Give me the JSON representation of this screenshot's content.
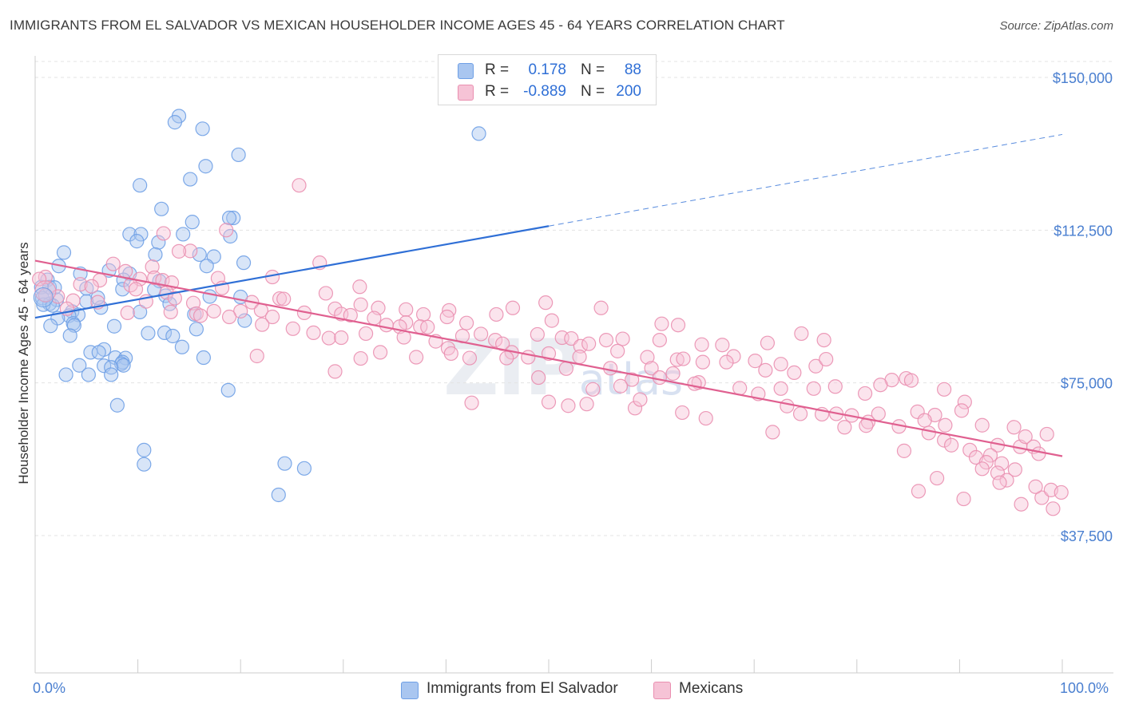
{
  "title": "IMMIGRANTS FROM EL SALVADOR VS MEXICAN HOUSEHOLDER INCOME AGES 45 - 64 YEARS CORRELATION CHART",
  "source": "Source: ZipAtlas.com",
  "watermark": {
    "main": "ZIP",
    "sub": "atlas"
  },
  "legend": {
    "rows": [
      {
        "r_label": "R =",
        "r_value": "0.178",
        "n_label": "N =",
        "n_value": "88"
      },
      {
        "r_label": "R =",
        "r_value": "-0.889",
        "n_label": "N =",
        "n_value": "200"
      }
    ]
  },
  "bottom_legend": [
    "Immigrants from El Salvador",
    "Mexicans"
  ],
  "chart_data": {
    "type": "scatter",
    "title": "IMMIGRANTS FROM EL SALVADOR VS MEXICAN HOUSEHOLDER INCOME AGES 45 - 64 YEARS CORRELATION CHART",
    "xlabel": "",
    "ylabel": "Householder Income Ages 45 - 64 years",
    "xlim": [
      0,
      100
    ],
    "ylim": [
      0,
      152000
    ],
    "x_tick_labels": [
      "0.0%",
      "100.0%"
    ],
    "y_ticks": [
      {
        "value": 150000,
        "label": "$150,000"
      },
      {
        "value": 112500,
        "label": "$112,500"
      },
      {
        "value": 75000,
        "label": "$75,000"
      },
      {
        "value": 37500,
        "label": "$37,500"
      }
    ],
    "grid": true,
    "series": [
      {
        "name": "Immigrants from El Salvador",
        "color": "#6fa0e6",
        "fill": "#a9c6f0",
        "trend": {
          "x0": 0,
          "y0": 91000,
          "x1": 50,
          "y1": 113500,
          "dash_to_x": 100,
          "dash_to_y": 136000,
          "color": "#2f6fd6"
        },
        "points": [
          [
            14,
            140.5
          ],
          [
            13.6,
            139
          ],
          [
            16.3,
            137.4
          ],
          [
            43.2,
            136.2
          ],
          [
            19.8,
            131
          ],
          [
            16.6,
            128.2
          ],
          [
            15.1,
            125
          ],
          [
            10.2,
            123.5
          ],
          [
            12.3,
            117.7
          ],
          [
            19.3,
            115.5
          ],
          [
            18.9,
            115.5
          ],
          [
            15.3,
            114.5
          ],
          [
            9.2,
            111.5
          ],
          [
            10.3,
            111.5
          ],
          [
            14.4,
            111.5
          ],
          [
            19.0,
            111
          ],
          [
            9.9,
            109.8
          ],
          [
            12.0,
            109.5
          ],
          [
            2.8,
            107
          ],
          [
            11.7,
            106.5
          ],
          [
            16.0,
            106.5
          ],
          [
            17.4,
            106
          ],
          [
            20.3,
            104.5
          ],
          [
            16.7,
            103.7
          ],
          [
            2.3,
            103.7
          ],
          [
            7.2,
            102.6
          ],
          [
            4.4,
            101.8
          ],
          [
            9.2,
            101.8
          ],
          [
            1.2,
            100.3
          ],
          [
            8.6,
            100.3
          ],
          [
            12.1,
            100
          ],
          [
            1.4,
            98.5
          ],
          [
            0.6,
            98.5
          ],
          [
            1.9,
            98.4
          ],
          [
            8.5,
            98
          ],
          [
            12.7,
            96.4
          ],
          [
            17.0,
            96.2
          ],
          [
            0.7,
            95.8
          ],
          [
            2.1,
            95.4
          ],
          [
            5.0,
            95.0
          ],
          [
            1.4,
            94.4
          ],
          [
            13.1,
            94.4
          ],
          [
            0.8,
            94.2
          ],
          [
            1.7,
            94
          ],
          [
            6.4,
            93.5
          ],
          [
            3.6,
            92.5
          ],
          [
            10.2,
            92.4
          ],
          [
            15.5,
            91.8
          ],
          [
            4.2,
            91.7
          ],
          [
            3.3,
            91.5
          ],
          [
            2.2,
            90.9
          ],
          [
            20.4,
            90.3
          ],
          [
            3.7,
            89.6
          ],
          [
            3.8,
            89.1
          ],
          [
            1.5,
            89.0
          ],
          [
            7.7,
            88.9
          ],
          [
            15.7,
            88.2
          ],
          [
            11.0,
            87.2
          ],
          [
            12.6,
            87.3
          ],
          [
            3.4,
            86.6
          ],
          [
            13.4,
            86.5
          ],
          [
            14.3,
            83.8
          ],
          [
            6.7,
            83.2
          ],
          [
            5.4,
            82.5
          ],
          [
            6.2,
            82.5
          ],
          [
            7.8,
            81.2
          ],
          [
            16.4,
            81.2
          ],
          [
            8.8,
            81.1
          ],
          [
            8.5,
            80.1
          ],
          [
            6.7,
            79.2
          ],
          [
            8.4,
            79.7
          ],
          [
            4.3,
            79.3
          ],
          [
            8.6,
            79.3
          ],
          [
            7.4,
            78.8
          ],
          [
            3.0,
            77
          ],
          [
            5.2,
            77
          ],
          [
            7.4,
            77
          ],
          [
            18.8,
            73.2
          ],
          [
            8.0,
            69.5
          ],
          [
            10.6,
            58.5
          ],
          [
            10.6,
            55
          ],
          [
            24.3,
            55.2
          ],
          [
            26.2,
            54
          ],
          [
            23.7,
            47.5
          ],
          [
            5.0,
            98.2
          ],
          [
            11.6,
            97.9
          ],
          [
            20.0,
            96.1
          ],
          [
            6.1,
            95.9
          ]
        ]
      },
      {
        "name": "Mexicans",
        "color": "#ea8fb0",
        "fill": "#f6c3d6",
        "trend": {
          "x0": 0,
          "y0": 105000,
          "x1": 100,
          "y1": 57000,
          "color": "#e06090"
        },
        "points": [
          [
            25.7,
            123.5
          ],
          [
            18.6,
            112.5
          ],
          [
            12.5,
            111.7
          ],
          [
            15.1,
            107.4
          ],
          [
            14.0,
            107.3
          ],
          [
            27.7,
            104.5
          ],
          [
            7.6,
            104.2
          ],
          [
            11.4,
            103.5
          ],
          [
            8.8,
            102.4
          ],
          [
            1.0,
            101.0
          ],
          [
            11.6,
            100.8
          ],
          [
            10.2,
            100.5
          ],
          [
            12.4,
            100.2
          ],
          [
            17.8,
            100.7
          ],
          [
            23.1,
            101.0
          ],
          [
            0.4,
            100.5
          ],
          [
            6.3,
            100.2
          ],
          [
            13.3,
            99.6
          ],
          [
            4.4,
            99.2
          ],
          [
            9.3,
            99
          ],
          [
            5.5,
            98.7
          ],
          [
            18.2,
            98.3
          ],
          [
            31.6,
            98.6
          ],
          [
            9.8,
            98
          ],
          [
            12.8,
            97.2
          ],
          [
            28.3,
            97
          ],
          [
            2.2,
            96.2
          ],
          [
            1.0,
            96.5
          ],
          [
            13.6,
            95.8
          ],
          [
            23.8,
            95.7
          ],
          [
            3.7,
            95.2
          ],
          [
            10.8,
            95
          ],
          [
            6.1,
            94.8
          ],
          [
            21.1,
            94.8
          ],
          [
            24.2,
            95.6
          ],
          [
            15.4,
            94.6
          ],
          [
            31.7,
            94.2
          ],
          [
            29.2,
            93.2
          ],
          [
            3.1,
            93.2
          ],
          [
            36.1,
            93
          ],
          [
            13.2,
            92.4
          ],
          [
            9.0,
            92.2
          ],
          [
            15.7,
            92
          ],
          [
            17.4,
            92.6
          ],
          [
            20.0,
            92.6
          ],
          [
            22.0,
            92.8
          ],
          [
            26.2,
            92.2
          ],
          [
            33.4,
            93.4
          ],
          [
            40.3,
            92.8
          ],
          [
            44.9,
            91.8
          ],
          [
            46.5,
            93.4
          ],
          [
            49.7,
            94.7
          ],
          [
            55.1,
            93.4
          ],
          [
            29.8,
            91.9
          ],
          [
            16.1,
            91.5
          ],
          [
            18.9,
            91.2
          ],
          [
            23.1,
            91.2
          ],
          [
            30.7,
            91.6
          ],
          [
            37.8,
            91.8
          ],
          [
            40.1,
            91.2
          ],
          [
            33.0,
            90.9
          ],
          [
            36.1,
            89.8
          ],
          [
            42.0,
            89.7
          ],
          [
            50.3,
            90.3
          ],
          [
            61.0,
            89.5
          ],
          [
            62.6,
            89.2
          ],
          [
            22.1,
            89.3
          ],
          [
            34.2,
            89.2
          ],
          [
            35.5,
            88.8
          ],
          [
            37.5,
            88.8
          ],
          [
            38.2,
            88.7
          ],
          [
            25.1,
            88.3
          ],
          [
            27.1,
            87.3
          ],
          [
            32.2,
            87.1
          ],
          [
            43.4,
            87
          ],
          [
            48.9,
            86.9
          ],
          [
            51.3,
            86.1
          ],
          [
            28.6,
            86.0
          ],
          [
            29.8,
            86.1
          ],
          [
            35.9,
            86.2
          ],
          [
            41.6,
            86.5
          ],
          [
            52.2,
            85.9
          ],
          [
            55.6,
            85.5
          ],
          [
            57.2,
            85.8
          ],
          [
            60.8,
            85.5
          ],
          [
            64.9,
            84.4
          ],
          [
            66.9,
            84.3
          ],
          [
            68.0,
            81.5
          ],
          [
            71.3,
            84.8
          ],
          [
            74.6,
            87.1
          ],
          [
            76.8,
            85.5
          ],
          [
            44.8,
            85.5
          ],
          [
            39.0,
            85.2
          ],
          [
            40.2,
            83.5
          ],
          [
            45.5,
            84.6
          ],
          [
            53.1,
            84
          ],
          [
            53.9,
            84.6
          ],
          [
            46.4,
            82.5
          ],
          [
            56.7,
            82.8
          ],
          [
            33.6,
            82.5
          ],
          [
            40.5,
            82.2
          ],
          [
            37.1,
            81.3
          ],
          [
            42.3,
            81.1
          ],
          [
            45.9,
            81.1
          ],
          [
            50.0,
            82.2
          ],
          [
            59.6,
            81.3
          ],
          [
            60.0,
            78.6
          ],
          [
            62.5,
            80.7
          ],
          [
            63.1,
            80.9
          ],
          [
            65.0,
            80.1
          ],
          [
            67.3,
            80.1
          ],
          [
            70.1,
            80.4
          ],
          [
            72.6,
            79.6
          ],
          [
            76.0,
            79.1
          ],
          [
            77.0,
            80.8
          ],
          [
            21.6,
            81.6
          ],
          [
            31.7,
            81.0
          ],
          [
            48.0,
            81.3
          ],
          [
            53.0,
            81.4
          ],
          [
            56.0,
            78.6
          ],
          [
            58.1,
            75.8
          ],
          [
            60.8,
            76.3
          ],
          [
            62.1,
            77.3
          ],
          [
            64.6,
            75.1
          ],
          [
            71.1,
            78.1
          ],
          [
            73.9,
            77.5
          ],
          [
            75.8,
            73.6
          ],
          [
            80.8,
            72.4
          ],
          [
            83.4,
            75.7
          ],
          [
            84.8,
            76.1
          ],
          [
            88.5,
            73.4
          ],
          [
            29.2,
            77.8
          ],
          [
            49.0,
            76.3
          ],
          [
            51.7,
            78.5
          ],
          [
            54.3,
            73.4
          ],
          [
            57.0,
            74.2
          ],
          [
            64.2,
            74.8
          ],
          [
            68.6,
            73.7
          ],
          [
            70.4,
            72.3
          ],
          [
            72.6,
            73.6
          ],
          [
            77.9,
            74.1
          ],
          [
            82.3,
            74.5
          ],
          [
            85.3,
            75.6
          ],
          [
            42.5,
            70.1
          ],
          [
            50.0,
            70.3
          ],
          [
            51.9,
            69.4
          ],
          [
            53.7,
            69.8
          ],
          [
            58.4,
            68.8
          ],
          [
            58.9,
            70.9
          ],
          [
            63.0,
            67.7
          ],
          [
            65.3,
            66.3
          ],
          [
            73.2,
            69.3
          ],
          [
            74.5,
            67.4
          ],
          [
            76.6,
            67.3
          ],
          [
            78.0,
            67.4
          ],
          [
            79.5,
            67.0
          ],
          [
            81.1,
            65.4
          ],
          [
            82.1,
            67.4
          ],
          [
            85.9,
            67.9
          ],
          [
            87.6,
            67.1
          ],
          [
            88.6,
            64.6
          ],
          [
            90.5,
            70.3
          ],
          [
            78.8,
            64.1
          ],
          [
            80.9,
            64.5
          ],
          [
            84.1,
            64.3
          ],
          [
            86.6,
            65.8
          ],
          [
            87.0,
            62.7
          ],
          [
            90.2,
            68.2
          ],
          [
            92.2,
            64.6
          ],
          [
            95.3,
            64.1
          ],
          [
            98.5,
            62.4
          ],
          [
            93.7,
            59.7
          ],
          [
            95.9,
            59.3
          ],
          [
            96.4,
            61.8
          ],
          [
            97.2,
            59.3
          ],
          [
            88.5,
            60.9
          ],
          [
            89.2,
            59.7
          ],
          [
            91.0,
            58.5
          ],
          [
            91.6,
            56.7
          ],
          [
            93.0,
            57.2
          ],
          [
            94.1,
            55.2
          ],
          [
            95.4,
            53.7
          ],
          [
            97.7,
            57.6
          ],
          [
            71.8,
            62.9
          ],
          [
            84.6,
            58.3
          ],
          [
            92.6,
            55.5
          ],
          [
            92.2,
            53.9
          ],
          [
            93.7,
            52.9
          ],
          [
            94.6,
            51.1
          ],
          [
            93.9,
            50.5
          ],
          [
            96.0,
            45.2
          ],
          [
            98.0,
            46.8
          ],
          [
            98.9,
            48.7
          ],
          [
            99.9,
            48.1
          ],
          [
            99.1,
            44.1
          ],
          [
            97.4,
            49.5
          ],
          [
            90.4,
            46.5
          ],
          [
            86.0,
            48.4
          ],
          [
            87.8,
            51.6
          ]
        ]
      }
    ]
  }
}
